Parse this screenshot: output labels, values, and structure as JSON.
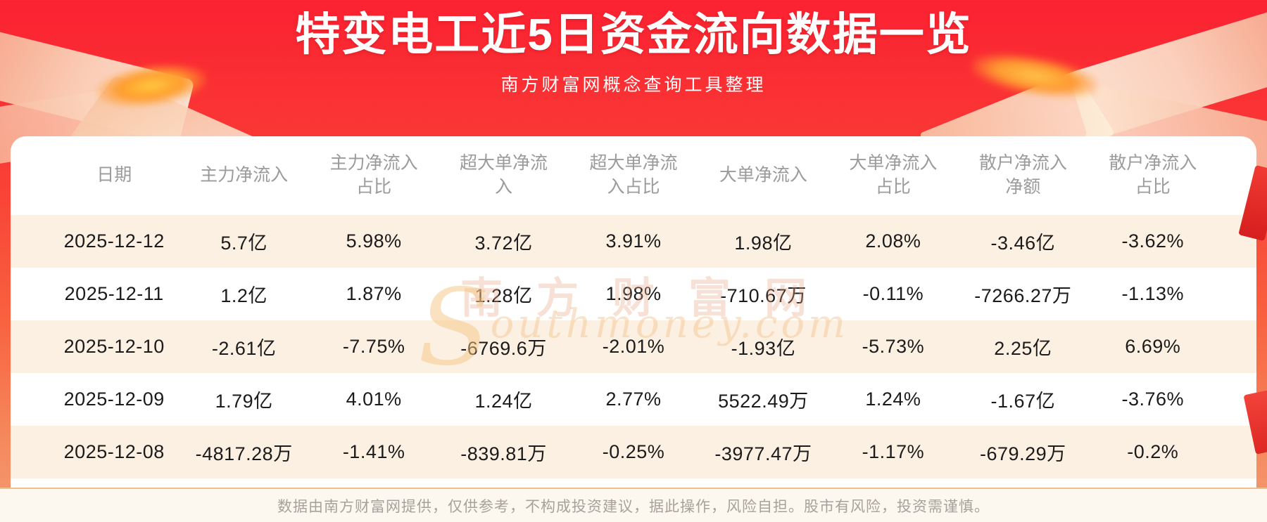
{
  "page": {
    "title": "特变电工近5日资金流向数据一览",
    "subtitle": "南方财富网概念查询工具整理",
    "disclaimer": "数据由南方财富网提供，仅供参考，不构成投资建议，据此操作，风险自担。股市有风险，投资需谨慎。"
  },
  "watermark": {
    "cn": "南方财富网",
    "en_initial": "S",
    "en_rest": "outhmoney.com"
  },
  "chart_data": {
    "type": "table",
    "title": "特变电工近5日资金流向数据一览",
    "columns": [
      "日期",
      "主力净流入",
      "主力净流入\n占比",
      "超大单净流\n入",
      "超大单净流\n入占比",
      "大单净流入",
      "大单净流入\n占比",
      "散户净流入\n净额",
      "散户净流入\n占比"
    ],
    "rows": [
      [
        "2025-12-12",
        "5.7亿",
        "5.98%",
        "3.72亿",
        "3.91%",
        "1.98亿",
        "2.08%",
        "-3.46亿",
        "-3.62%"
      ],
      [
        "2025-12-11",
        "1.2亿",
        "1.87%",
        "1.28亿",
        "1.98%",
        "-710.67万",
        "-0.11%",
        "-7266.27万",
        "-1.13%"
      ],
      [
        "2025-12-10",
        "-2.61亿",
        "-7.75%",
        "-6769.6万",
        "-2.01%",
        "-1.93亿",
        "-5.73%",
        "2.25亿",
        "6.69%"
      ],
      [
        "2025-12-09",
        "1.79亿",
        "4.01%",
        "1.24亿",
        "2.77%",
        "5522.49万",
        "1.24%",
        "-1.67亿",
        "-3.76%"
      ],
      [
        "2025-12-08",
        "-4817.28万",
        "-1.41%",
        "-839.81万",
        "-0.25%",
        "-3977.47万",
        "-1.17%",
        "-679.29万",
        "-0.2%"
      ]
    ],
    "row_alternating_background": true,
    "legend_position": "none",
    "grid": false
  },
  "colors": {
    "banner_red_top": "#fb2131",
    "banner_red_bottom": "#f49a74",
    "card_bg": "#ffffff",
    "row_alt_bg": "#fcf0e3",
    "footer_bg": "#fdf8ef",
    "footer_divider": "#eec08b",
    "header_text": "#9b9b9b",
    "cell_text": "#1b1b1b",
    "footer_text": "#a6a29b",
    "title_text": "#ffffff",
    "decor_peach": "#fbd9c0",
    "decor_glow_orange": "#ff9d2e"
  }
}
